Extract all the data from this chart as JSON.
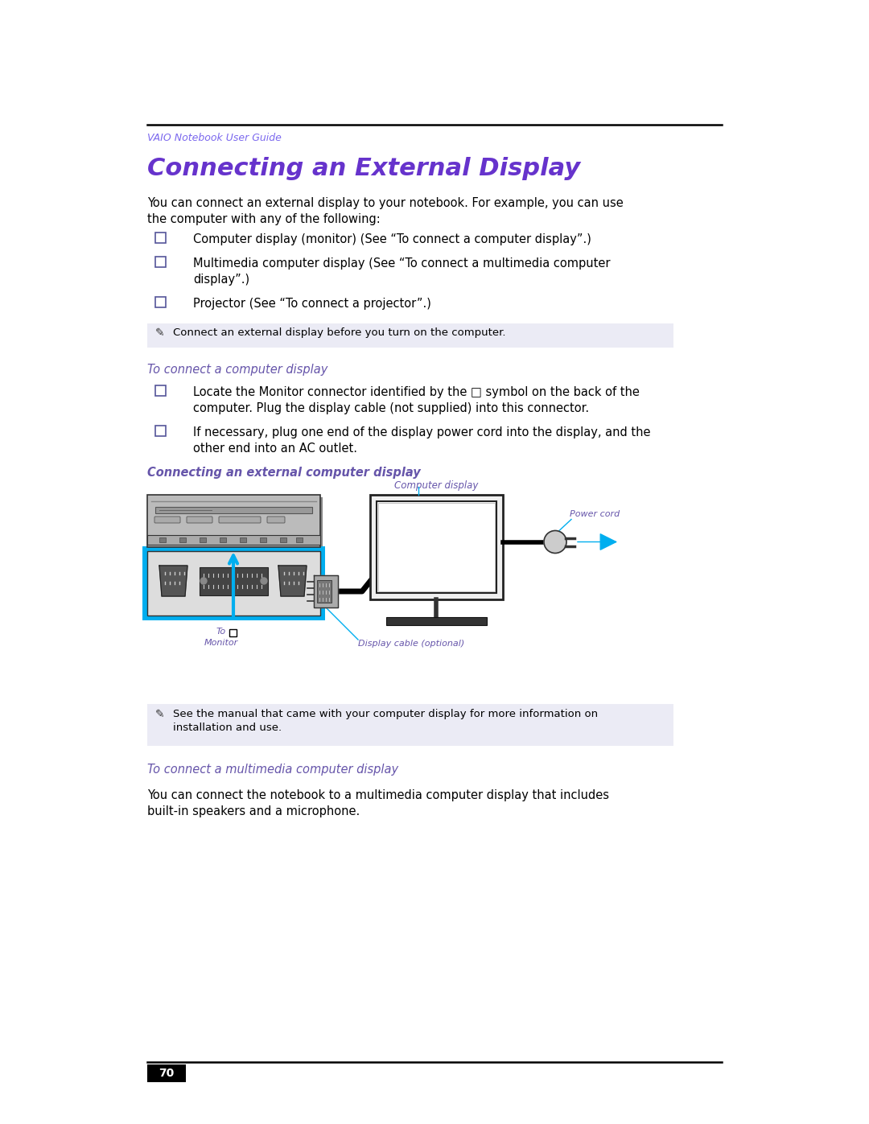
{
  "bg_color": "#ffffff",
  "header_color": "#7B68EE",
  "header_text": "VAIO Notebook User Guide",
  "title": "Connecting an External Display",
  "title_color": "#6633CC",
  "body_color": "#000000",
  "cyan_color": "#00AEEF",
  "purple_color": "#6655AA",
  "note_bg_color": "#EBEBF5",
  "body_text_1": "You can connect an external display to your notebook. For example, you can use\nthe computer with any of the following:",
  "bullet1": "Computer display (monitor) (See “To connect a computer display”.)",
  "bullet2": "Multimedia computer display (See “To connect a multimedia computer\ndisplay”.)",
  "bullet3": "Projector (See “To connect a projector”.)",
  "note1": "Connect an external display before you turn on the computer.",
  "subhead1": "To connect a computer display",
  "sub_bullet1": "Locate the Monitor connector identified by the □ symbol on the back of the\ncomputer. Plug the display cable (not supplied) into this connector.",
  "sub_bullet2": "If necessary, plug one end of the display power cord into the display, and the\nother end into an AC outlet.",
  "subhead2": "Connecting an external computer display",
  "label_computer_display": "Computer display",
  "label_power_cord": "Power cord",
  "label_display_cable": "Display cable (optional)",
  "label_to_monitor": "To\nMonitor",
  "note2": "See the manual that came with your computer display for more information on\ninstallation and use.",
  "subhead3": "To connect a multimedia computer display",
  "body_text_2": "You can connect the notebook to a multimedia computer display that includes\nbuilt-in speakers and a microphone.",
  "page_number": "70"
}
